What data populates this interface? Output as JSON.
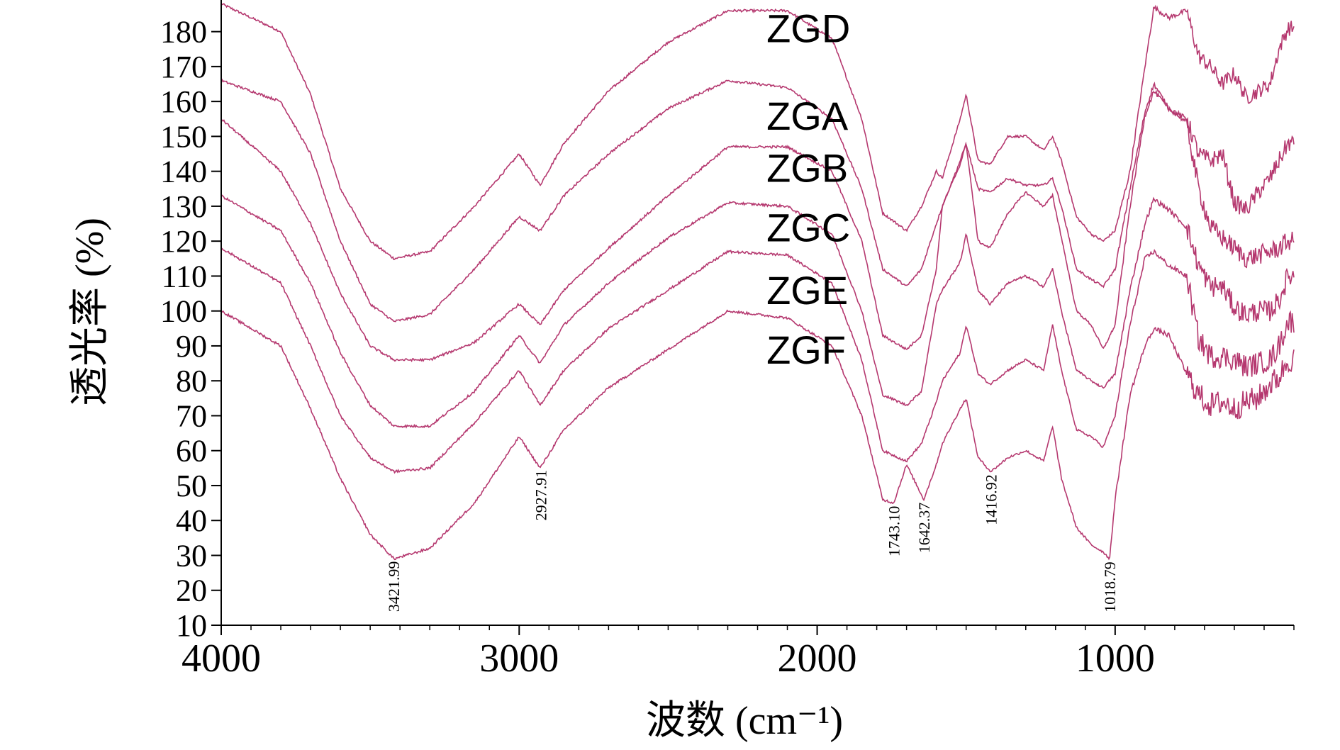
{
  "chart_data": {
    "type": "line",
    "title": "",
    "xlabel": "波数 (cm⁻¹)",
    "ylabel": "透光率 (%)",
    "xlim": [
      4000,
      400
    ],
    "ylim": [
      10,
      185
    ],
    "x_ticks": [
      4000,
      3000,
      2000,
      1000
    ],
    "y_ticks": [
      10,
      20,
      30,
      40,
      50,
      60,
      70,
      80,
      90,
      100,
      110,
      120,
      130,
      140,
      150,
      160,
      170,
      180
    ],
    "line_color": "#b5386f",
    "series": [
      {
        "name": "ZGD",
        "label_position": {
          "x": 2170,
          "y": 181
        },
        "points": [
          [
            4000,
            188
          ],
          [
            3800,
            180
          ],
          [
            3700,
            162
          ],
          [
            3600,
            135
          ],
          [
            3500,
            120
          ],
          [
            3420,
            115
          ],
          [
            3300,
            117
          ],
          [
            3150,
            130
          ],
          [
            3000,
            145
          ],
          [
            2930,
            136
          ],
          [
            2850,
            148
          ],
          [
            2700,
            163
          ],
          [
            2500,
            177
          ],
          [
            2300,
            186
          ],
          [
            2100,
            186
          ],
          [
            1950,
            178
          ],
          [
            1850,
            155
          ],
          [
            1780,
            128
          ],
          [
            1700,
            123
          ],
          [
            1650,
            130
          ],
          [
            1600,
            140
          ],
          [
            1580,
            138
          ],
          [
            1520,
            155
          ],
          [
            1500,
            162
          ],
          [
            1460,
            143
          ],
          [
            1420,
            142
          ],
          [
            1360,
            150
          ],
          [
            1300,
            150
          ],
          [
            1240,
            146
          ],
          [
            1210,
            150
          ],
          [
            1180,
            143
          ],
          [
            1130,
            127
          ],
          [
            1080,
            122
          ],
          [
            1040,
            120
          ],
          [
            1000,
            123
          ],
          [
            950,
            140
          ],
          [
            900,
            170
          ],
          [
            870,
            187
          ],
          [
            820,
            184
          ],
          [
            760,
            186
          ],
          [
            720,
            173
          ],
          [
            680,
            170
          ],
          [
            640,
            165
          ],
          [
            600,
            168
          ],
          [
            560,
            161
          ],
          [
            520,
            163
          ],
          [
            480,
            165
          ],
          [
            450,
            175
          ],
          [
            420,
            181
          ]
        ]
      },
      {
        "name": "ZGA",
        "label_position": {
          "x": 2170,
          "y": 156
        },
        "points": [
          [
            4000,
            166
          ],
          [
            3800,
            160
          ],
          [
            3700,
            145
          ],
          [
            3600,
            120
          ],
          [
            3500,
            102
          ],
          [
            3420,
            97
          ],
          [
            3300,
            99
          ],
          [
            3150,
            112
          ],
          [
            3000,
            127
          ],
          [
            2930,
            123
          ],
          [
            2850,
            133
          ],
          [
            2700,
            145
          ],
          [
            2500,
            158
          ],
          [
            2300,
            166
          ],
          [
            2100,
            164
          ],
          [
            1950,
            155
          ],
          [
            1850,
            135
          ],
          [
            1780,
            112
          ],
          [
            1700,
            107
          ],
          [
            1650,
            112
          ],
          [
            1600,
            125
          ],
          [
            1580,
            130
          ],
          [
            1520,
            143
          ],
          [
            1500,
            148
          ],
          [
            1460,
            135
          ],
          [
            1420,
            134
          ],
          [
            1360,
            138
          ],
          [
            1300,
            136
          ],
          [
            1240,
            136
          ],
          [
            1210,
            138
          ],
          [
            1180,
            130
          ],
          [
            1130,
            112
          ],
          [
            1080,
            109
          ],
          [
            1040,
            107
          ],
          [
            1000,
            112
          ],
          [
            950,
            135
          ],
          [
            900,
            157
          ],
          [
            870,
            165
          ],
          [
            820,
            158
          ],
          [
            760,
            155
          ],
          [
            720,
            145
          ],
          [
            680,
            143
          ],
          [
            640,
            145
          ],
          [
            600,
            131
          ],
          [
            560,
            129
          ],
          [
            520,
            134
          ],
          [
            480,
            138
          ],
          [
            450,
            143
          ],
          [
            420,
            148
          ]
        ]
      },
      {
        "name": "ZGB",
        "label_position": {
          "x": 2170,
          "y": 141
        },
        "points": [
          [
            4000,
            155
          ],
          [
            3800,
            140
          ],
          [
            3700,
            125
          ],
          [
            3600,
            105
          ],
          [
            3500,
            90
          ],
          [
            3420,
            86
          ],
          [
            3300,
            86
          ],
          [
            3150,
            91
          ],
          [
            3000,
            102
          ],
          [
            2930,
            96
          ],
          [
            2850,
            106
          ],
          [
            2700,
            118
          ],
          [
            2500,
            133
          ],
          [
            2300,
            147
          ],
          [
            2100,
            147
          ],
          [
            1950,
            140
          ],
          [
            1850,
            120
          ],
          [
            1780,
            93
          ],
          [
            1700,
            89
          ],
          [
            1650,
            93
          ],
          [
            1600,
            112
          ],
          [
            1580,
            130
          ],
          [
            1520,
            142
          ],
          [
            1500,
            148
          ],
          [
            1460,
            120
          ],
          [
            1420,
            118
          ],
          [
            1360,
            128
          ],
          [
            1300,
            134
          ],
          [
            1240,
            130
          ],
          [
            1210,
            133
          ],
          [
            1180,
            121
          ],
          [
            1130,
            100
          ],
          [
            1080,
            96
          ],
          [
            1040,
            89
          ],
          [
            1000,
            96
          ],
          [
            950,
            130
          ],
          [
            900,
            156
          ],
          [
            870,
            163
          ],
          [
            820,
            158
          ],
          [
            760,
            154
          ],
          [
            720,
            135
          ],
          [
            680,
            124
          ],
          [
            640,
            121
          ],
          [
            600,
            118
          ],
          [
            560,
            115
          ],
          [
            520,
            116
          ],
          [
            480,
            117
          ],
          [
            450,
            118
          ],
          [
            420,
            120
          ]
        ]
      },
      {
        "name": "ZGC",
        "label_position": {
          "x": 2170,
          "y": 124
        },
        "points": [
          [
            4000,
            133
          ],
          [
            3800,
            123
          ],
          [
            3700,
            108
          ],
          [
            3600,
            88
          ],
          [
            3500,
            73
          ],
          [
            3420,
            67
          ],
          [
            3300,
            67
          ],
          [
            3150,
            77
          ],
          [
            3000,
            93
          ],
          [
            2930,
            85
          ],
          [
            2850,
            96
          ],
          [
            2700,
            108
          ],
          [
            2500,
            121
          ],
          [
            2300,
            131
          ],
          [
            2100,
            130
          ],
          [
            1950,
            122
          ],
          [
            1850,
            100
          ],
          [
            1780,
            76
          ],
          [
            1700,
            73
          ],
          [
            1650,
            77
          ],
          [
            1600,
            102
          ],
          [
            1580,
            106
          ],
          [
            1520,
            114
          ],
          [
            1500,
            122
          ],
          [
            1460,
            106
          ],
          [
            1420,
            102
          ],
          [
            1360,
            108
          ],
          [
            1300,
            110
          ],
          [
            1240,
            107
          ],
          [
            1210,
            112
          ],
          [
            1180,
            100
          ],
          [
            1130,
            83
          ],
          [
            1080,
            80
          ],
          [
            1040,
            78
          ],
          [
            1000,
            82
          ],
          [
            950,
            106
          ],
          [
            900,
            125
          ],
          [
            870,
            132
          ],
          [
            820,
            129
          ],
          [
            760,
            124
          ],
          [
            720,
            113
          ],
          [
            680,
            107
          ],
          [
            640,
            107
          ],
          [
            600,
            101
          ],
          [
            560,
            99
          ],
          [
            520,
            100
          ],
          [
            480,
            100
          ],
          [
            450,
            103
          ],
          [
            420,
            110
          ]
        ]
      },
      {
        "name": "ZGE",
        "label_position": {
          "x": 2170,
          "y": 106
        },
        "points": [
          [
            4000,
            118
          ],
          [
            3800,
            108
          ],
          [
            3700,
            90
          ],
          [
            3600,
            70
          ],
          [
            3500,
            58
          ],
          [
            3420,
            54
          ],
          [
            3300,
            55
          ],
          [
            3150,
            68
          ],
          [
            3000,
            83
          ],
          [
            2930,
            73
          ],
          [
            2850,
            83
          ],
          [
            2700,
            95
          ],
          [
            2500,
            106
          ],
          [
            2300,
            117
          ],
          [
            2100,
            116
          ],
          [
            1950,
            108
          ],
          [
            1850,
            86
          ],
          [
            1780,
            60
          ],
          [
            1700,
            57
          ],
          [
            1650,
            62
          ],
          [
            1600,
            74
          ],
          [
            1580,
            80
          ],
          [
            1520,
            88
          ],
          [
            1500,
            96
          ],
          [
            1460,
            82
          ],
          [
            1420,
            79
          ],
          [
            1360,
            83
          ],
          [
            1300,
            86
          ],
          [
            1240,
            83
          ],
          [
            1210,
            96
          ],
          [
            1180,
            83
          ],
          [
            1130,
            66
          ],
          [
            1080,
            64
          ],
          [
            1040,
            61
          ],
          [
            1000,
            70
          ],
          [
            950,
            96
          ],
          [
            900,
            115
          ],
          [
            870,
            117
          ],
          [
            820,
            113
          ],
          [
            760,
            110
          ],
          [
            720,
            92
          ],
          [
            680,
            87
          ],
          [
            640,
            87
          ],
          [
            600,
            86
          ],
          [
            560,
            84
          ],
          [
            520,
            85
          ],
          [
            480,
            86
          ],
          [
            450,
            90
          ],
          [
            420,
            97
          ]
        ]
      },
      {
        "name": "ZGF",
        "label_position": {
          "x": 2170,
          "y": 89
        },
        "points": [
          [
            4000,
            100
          ],
          [
            3800,
            90
          ],
          [
            3700,
            72
          ],
          [
            3600,
            52
          ],
          [
            3500,
            36
          ],
          [
            3420,
            29
          ],
          [
            3300,
            32
          ],
          [
            3150,
            45
          ],
          [
            3000,
            64
          ],
          [
            2930,
            55
          ],
          [
            2850,
            66
          ],
          [
            2700,
            78
          ],
          [
            2500,
            89
          ],
          [
            2300,
            100
          ],
          [
            2100,
            98
          ],
          [
            1950,
            90
          ],
          [
            1850,
            70
          ],
          [
            1780,
            46
          ],
          [
            1743.1,
            45
          ],
          [
            1700,
            56
          ],
          [
            1642.37,
            46
          ],
          [
            1600,
            56
          ],
          [
            1580,
            62
          ],
          [
            1520,
            72
          ],
          [
            1500,
            75
          ],
          [
            1460,
            58
          ],
          [
            1416.92,
            54
          ],
          [
            1360,
            58
          ],
          [
            1300,
            60
          ],
          [
            1240,
            57
          ],
          [
            1210,
            67
          ],
          [
            1180,
            52
          ],
          [
            1130,
            38
          ],
          [
            1080,
            33
          ],
          [
            1040,
            31
          ],
          [
            1018.79,
            29
          ],
          [
            1000,
            46
          ],
          [
            950,
            76
          ],
          [
            900,
            90
          ],
          [
            870,
            95
          ],
          [
            820,
            93
          ],
          [
            760,
            82
          ],
          [
            720,
            76
          ],
          [
            680,
            73
          ],
          [
            640,
            74
          ],
          [
            600,
            72
          ],
          [
            560,
            74
          ],
          [
            520,
            75
          ],
          [
            480,
            79
          ],
          [
            450,
            81
          ],
          [
            420,
            86
          ]
        ]
      }
    ],
    "peak_labels": [
      {
        "text": "3421.99",
        "x": 3421.99
      },
      {
        "text": "2927.91",
        "x": 2927.91
      },
      {
        "text": "1743.10",
        "x": 1743.1
      },
      {
        "text": "1642.37",
        "x": 1642.37
      },
      {
        "text": "1416.92",
        "x": 1416.92
      },
      {
        "text": "1018.79",
        "x": 1018.79
      }
    ]
  }
}
